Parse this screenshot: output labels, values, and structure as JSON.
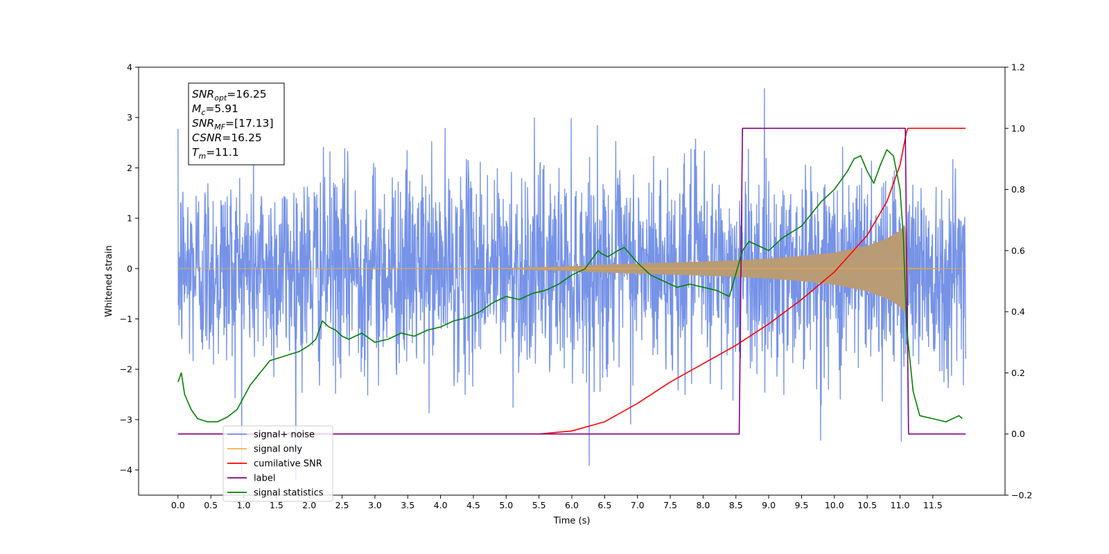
{
  "chart_data": {
    "type": "line",
    "xlabel": "Time (s)",
    "ylabel": "Whitened strain",
    "xlim": [
      -0.6,
      12.6
    ],
    "ylim": [
      -4.5,
      4
    ],
    "y2lim": [
      -0.2,
      1.2
    ],
    "x_ticks": [
      "0.0",
      "0.5",
      "1.0",
      "1.5",
      "2.0",
      "2.5",
      "3.0",
      "3.5",
      "4.0",
      "4.5",
      "5.0",
      "5.5",
      "6.0",
      "6.5",
      "7.0",
      "7.5",
      "8.0",
      "8.5",
      "9.0",
      "9.5",
      "10.0",
      "10.5",
      "11.0",
      "11.5"
    ],
    "y_ticks": [
      "4",
      "3",
      "2",
      "1",
      "0",
      "−1",
      "−2",
      "−3",
      "−4"
    ],
    "y2_ticks": [
      "1.2",
      "1.0",
      "0.8",
      "0.6",
      "0.4",
      "0.2",
      "0.0",
      "−0.2"
    ],
    "grid": false,
    "legend_position": "lower-left",
    "annotation": [
      {
        "base": "SNR",
        "sub": "opt",
        "value": "=16.25"
      },
      {
        "base": "M",
        "sub": "c",
        "value": "=5.91"
      },
      {
        "base": "SNR",
        "sub": "MF",
        "value": "=[17.13]"
      },
      {
        "base": "CSNR",
        "sub": "",
        "value": "=16.25"
      },
      {
        "base": "T",
        "sub": "m",
        "value": "=11.1"
      }
    ],
    "series": [
      {
        "name": "signal+ noise",
        "color": "#6f8de6",
        "axis": "left",
        "noise_sigma": 1.0,
        "x_range": [
          0.0,
          12.0
        ]
      },
      {
        "name": "signal only",
        "color": "#f5b041",
        "envelope_color": "#b99b75",
        "axis": "left",
        "envelope_x": [
          0.0,
          5.0,
          6.0,
          6.5,
          7.0,
          8.0,
          8.6,
          9.0,
          9.5,
          10.0,
          10.5,
          10.8,
          11.0,
          11.08,
          11.13,
          12.0
        ],
        "envelope_y": [
          0.0,
          0.01,
          0.05,
          0.08,
          0.1,
          0.14,
          0.17,
          0.2,
          0.25,
          0.32,
          0.45,
          0.6,
          0.75,
          0.9,
          0.02,
          0.0
        ]
      },
      {
        "name": "cumilative SNR",
        "color": "#ff0000",
        "axis": "right",
        "x": [
          0.0,
          5.5,
          6.0,
          6.5,
          7.0,
          7.5,
          8.0,
          8.5,
          9.0,
          9.5,
          10.0,
          10.5,
          10.8,
          11.0,
          11.1,
          11.12,
          12.0
        ],
        "y": [
          0.0,
          0.0,
          0.01,
          0.04,
          0.1,
          0.17,
          0.23,
          0.29,
          0.36,
          0.44,
          0.53,
          0.65,
          0.76,
          0.88,
          0.99,
          1.0,
          1.0
        ]
      },
      {
        "name": "label",
        "color": "#800080",
        "axis": "right",
        "x": [
          0.0,
          8.55,
          8.6,
          11.08,
          11.13,
          12.0
        ],
        "y": [
          0.0,
          0.0,
          1.0,
          1.0,
          0.0,
          0.0
        ]
      },
      {
        "name": "signal statistics",
        "color": "#008000",
        "axis": "right",
        "x": [
          0.0,
          0.05,
          0.1,
          0.2,
          0.3,
          0.45,
          0.6,
          0.75,
          0.9,
          1.0,
          1.1,
          1.25,
          1.4,
          1.55,
          1.7,
          1.85,
          2.0,
          2.1,
          2.2,
          2.3,
          2.4,
          2.5,
          2.6,
          2.8,
          3.0,
          3.2,
          3.4,
          3.6,
          3.8,
          4.0,
          4.2,
          4.4,
          4.6,
          4.8,
          5.0,
          5.2,
          5.4,
          5.6,
          5.8,
          6.0,
          6.2,
          6.4,
          6.45,
          6.55,
          6.7,
          6.8,
          7.0,
          7.2,
          7.4,
          7.6,
          7.8,
          8.0,
          8.2,
          8.4,
          8.6,
          8.7,
          8.8,
          9.0,
          9.2,
          9.5,
          9.8,
          10.0,
          10.2,
          10.3,
          10.4,
          10.5,
          10.6,
          10.7,
          10.8,
          10.9,
          11.0,
          11.05,
          11.1,
          11.2,
          11.3,
          11.5,
          11.7,
          11.8,
          11.9,
          11.95
        ],
        "y": [
          0.17,
          0.2,
          0.13,
          0.08,
          0.05,
          0.04,
          0.04,
          0.055,
          0.08,
          0.12,
          0.16,
          0.2,
          0.24,
          0.25,
          0.26,
          0.27,
          0.29,
          0.31,
          0.37,
          0.35,
          0.34,
          0.32,
          0.31,
          0.33,
          0.3,
          0.31,
          0.33,
          0.32,
          0.34,
          0.35,
          0.37,
          0.38,
          0.4,
          0.43,
          0.45,
          0.44,
          0.46,
          0.47,
          0.49,
          0.52,
          0.54,
          0.6,
          0.59,
          0.58,
          0.6,
          0.61,
          0.56,
          0.52,
          0.5,
          0.48,
          0.49,
          0.48,
          0.47,
          0.45,
          0.6,
          0.63,
          0.62,
          0.6,
          0.64,
          0.68,
          0.76,
          0.8,
          0.86,
          0.9,
          0.91,
          0.86,
          0.82,
          0.88,
          0.93,
          0.91,
          0.8,
          0.65,
          0.35,
          0.14,
          0.06,
          0.05,
          0.04,
          0.05,
          0.06,
          0.05
        ]
      }
    ]
  }
}
